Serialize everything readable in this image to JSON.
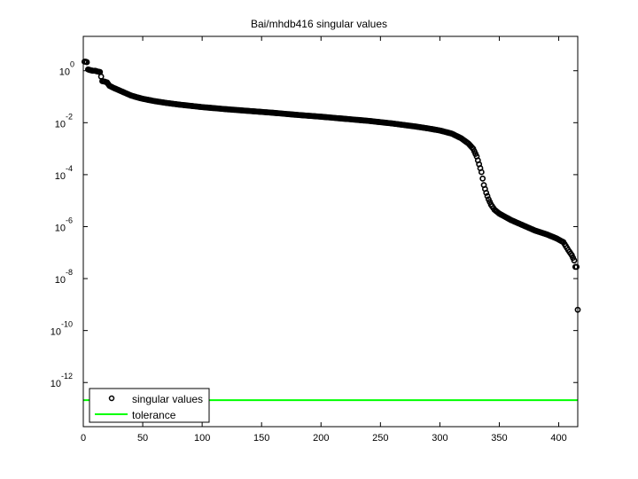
{
  "figure": {
    "title": "Bai/mhdb416 singular values"
  },
  "legend": {
    "entries": [
      {
        "label": "singular values",
        "marker": "open-circle",
        "color": "#000000"
      },
      {
        "label": "tolerance",
        "marker": "line",
        "color": "#00ff00"
      }
    ],
    "position": "lower-left"
  },
  "colors": {
    "markers": "#000000",
    "tolerance": "#00ff00",
    "axes": "#000000",
    "background": "#ffffff"
  },
  "chart_data": {
    "type": "scatter",
    "title": "Bai/mhdb416 singular values",
    "xlabel": "",
    "ylabel": "",
    "yscale": "log",
    "xlim": [
      0,
      416
    ],
    "ylim": [
      2e-14,
      21
    ],
    "grid": false,
    "legend_position": "lower-left",
    "x_ticks": [
      0,
      50,
      100,
      150,
      200,
      250,
      300,
      350,
      400
    ],
    "x_tick_labels": [
      "0",
      "50",
      "100",
      "150",
      "200",
      "250",
      "300",
      "350",
      "400"
    ],
    "y_ticks_exponent": [
      0,
      -2,
      -4,
      -6,
      -8,
      -10,
      -12
    ],
    "y_tick_labels": [
      {
        "base": "10",
        "exp": "0"
      },
      {
        "base": "10",
        "exp": "-2"
      },
      {
        "base": "10",
        "exp": "-4"
      },
      {
        "base": "10",
        "exp": "-6"
      },
      {
        "base": "10",
        "exp": "-8"
      },
      {
        "base": "10",
        "exp": "-10"
      },
      {
        "base": "10",
        "exp": "-12"
      }
    ],
    "series": [
      {
        "name": "singular values",
        "style": "open circles",
        "points_log10": [
          [
            1,
            0.35
          ],
          [
            2,
            0.35
          ],
          [
            3,
            0.33
          ],
          [
            4,
            0.05
          ],
          [
            6,
            0.02
          ],
          [
            8,
            0.0
          ],
          [
            10,
            0.0
          ],
          [
            12,
            -0.03
          ],
          [
            14,
            -0.05
          ],
          [
            16,
            -0.4
          ],
          [
            18,
            -0.42
          ],
          [
            20,
            -0.45
          ],
          [
            22,
            -0.58
          ],
          [
            25,
            -0.65
          ],
          [
            30,
            -0.75
          ],
          [
            35,
            -0.85
          ],
          [
            40,
            -0.95
          ],
          [
            45,
            -1.02
          ],
          [
            50,
            -1.08
          ],
          [
            60,
            -1.17
          ],
          [
            70,
            -1.24
          ],
          [
            80,
            -1.3
          ],
          [
            90,
            -1.35
          ],
          [
            100,
            -1.4
          ],
          [
            120,
            -1.48
          ],
          [
            140,
            -1.55
          ],
          [
            160,
            -1.62
          ],
          [
            180,
            -1.7
          ],
          [
            200,
            -1.77
          ],
          [
            220,
            -1.85
          ],
          [
            240,
            -1.93
          ],
          [
            260,
            -2.03
          ],
          [
            280,
            -2.15
          ],
          [
            290,
            -2.22
          ],
          [
            300,
            -2.3
          ],
          [
            310,
            -2.42
          ],
          [
            318,
            -2.6
          ],
          [
            324,
            -2.8
          ],
          [
            328,
            -3.0
          ],
          [
            331,
            -3.3
          ],
          [
            333,
            -3.6
          ],
          [
            335,
            -3.9
          ],
          [
            337,
            -4.4
          ],
          [
            339,
            -4.7
          ],
          [
            341,
            -4.95
          ],
          [
            343,
            -5.15
          ],
          [
            346,
            -5.35
          ],
          [
            350,
            -5.5
          ],
          [
            360,
            -5.75
          ],
          [
            370,
            -5.95
          ],
          [
            380,
            -6.15
          ],
          [
            390,
            -6.3
          ],
          [
            398,
            -6.45
          ],
          [
            404,
            -6.6
          ],
          [
            408,
            -6.9
          ],
          [
            411,
            -7.1
          ],
          [
            413,
            -7.3
          ],
          [
            414,
            -7.55
          ],
          [
            416,
            -9.2
          ]
        ]
      },
      {
        "name": "tolerance",
        "style": "green line",
        "y": 2.1e-13
      }
    ]
  }
}
